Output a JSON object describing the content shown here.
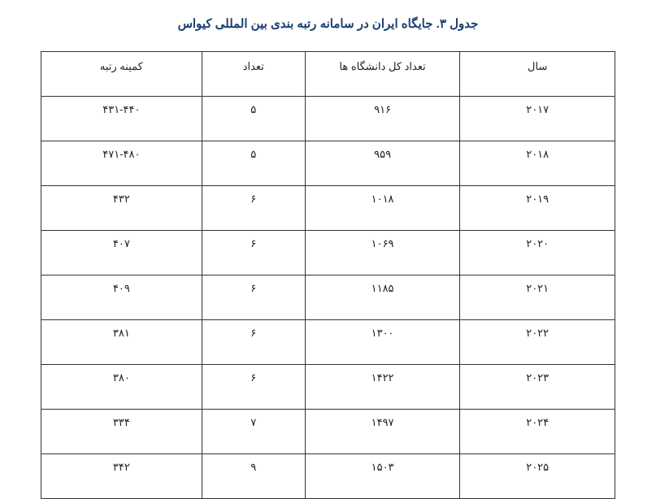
{
  "title": "جدول ۳. جایگاه ایران در سامانه رتبه بندی بین المللی کیواس",
  "headers": {
    "year": "سال",
    "total": "تعداد کل دانشگاه ها",
    "count": "تعداد",
    "minrank": "کمینه رتبه"
  },
  "rows": [
    {
      "year": "۲۰۱۷",
      "total": "۹۱۶",
      "count": "۵",
      "minrank": "۴۳۱-۴۴۰"
    },
    {
      "year": "۲۰۱۸",
      "total": "۹۵۹",
      "count": "۵",
      "minrank": "۴۷۱-۴۸۰"
    },
    {
      "year": "۲۰۱۹",
      "total": "۱۰۱۸",
      "count": "۶",
      "minrank": "۴۳۲"
    },
    {
      "year": "۲۰۲۰",
      "total": "۱۰۶۹",
      "count": "۶",
      "minrank": "۴۰۷"
    },
    {
      "year": "۲۰۲۱",
      "total": "۱۱۸۵",
      "count": "۶",
      "minrank": "۴۰۹"
    },
    {
      "year": "۲۰۲۲",
      "total": "۱۳۰۰",
      "count": "۶",
      "minrank": "۳۸۱"
    },
    {
      "year": "۲۰۲۳",
      "total": "۱۴۲۲",
      "count": "۶",
      "minrank": "۳۸۰"
    },
    {
      "year": "۲۰۲۴",
      "total": "۱۴۹۷",
      "count": "۷",
      "minrank": "۳۳۴"
    },
    {
      "year": "۲۰۲۵",
      "total": "۱۵۰۳",
      "count": "۹",
      "minrank": "۳۴۲"
    }
  ],
  "colors": {
    "title": "#1a3e6f",
    "border": "#333333",
    "text": "#222222",
    "background": "#ffffff"
  },
  "typography": {
    "title_fontsize": 15,
    "cell_fontsize": 13,
    "font_family": "Tahoma"
  }
}
